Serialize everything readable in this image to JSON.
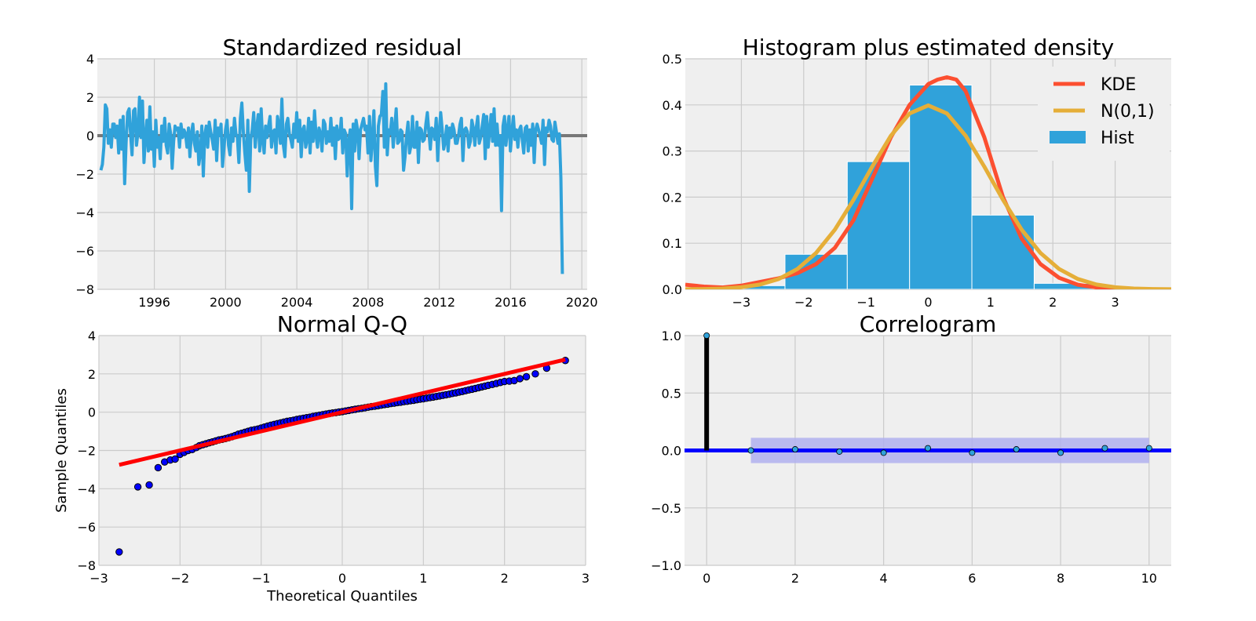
{
  "colors": {
    "residual": "#30a2da",
    "zero_line": "#777777",
    "hist": "#30a2da",
    "kde": "#fc4f30",
    "normal": "#e5ae38",
    "qq_points": "#0000ff",
    "qq_line": "#ff0000",
    "acf_stem": "#000000",
    "acf_zero": "#0000ff",
    "acf_band": "#b0b0ee",
    "acf_points": "#30a2da"
  },
  "chart_data": [
    {
      "type": "line",
      "title": "Standardized residual",
      "xlabel": "",
      "ylabel": "",
      "xlim": [
        1992.8,
        2020.3
      ],
      "ylim": [
        -8,
        4
      ],
      "xticks": [
        1996,
        2000,
        2004,
        2008,
        2012,
        2016,
        2020
      ],
      "yticks": [
        -8,
        -6,
        -4,
        -2,
        0,
        2,
        4
      ],
      "ytick_labels": [
        "−8",
        "−6",
        "−4",
        "−2",
        "0",
        "2",
        "4"
      ],
      "grid": true,
      "reference_line": 0,
      "series": [
        {
          "x_start": 1993.0,
          "x_step": 0.0833,
          "values": [
            -1.8,
            -1.5,
            -0.6,
            1.6,
            1.4,
            -0.4,
            0.3,
            -0.6,
            0.6,
            0.6,
            -0.1,
            0.5,
            -0.9,
            0.8,
            -0.7,
            1.0,
            -2.5,
            -0.3,
            1.2,
            1.4,
            0.1,
            -1.0,
            1.3,
            1.4,
            -0.5,
            0.2,
            2.0,
            -0.1,
            1.8,
            -1.4,
            -0.2,
            0.8,
            -0.8,
            1.5,
            -0.7,
            0.2,
            -1.6,
            0.8,
            -0.6,
            -0.1,
            -1.2,
            0.5,
            -0.3,
            0.9,
            -0.5,
            -0.9,
            0.6,
            0.1,
            -1.7,
            -0.3,
            0.5,
            0.3,
            0.4,
            -0.6,
            0.6,
            -0.1,
            0.3,
            0.1,
            -0.6,
            0.4,
            -1.1,
            0.1,
            0.6,
            -0.4,
            -0.8,
            0.2,
            -1.5,
            -0.9,
            0.5,
            -2.1,
            0.0,
            0.5,
            -0.6,
            0.7,
            0.2,
            -0.2,
            -0.7,
            0.8,
            -1.3,
            0.4,
            0.0,
            0.6,
            -1.6,
            -0.6,
            0.3,
            0.8,
            -0.5,
            -1.0,
            0.4,
            -0.3,
            0.9,
            0.1,
            -0.1,
            -1.4,
            0.9,
            1.7,
            0.2,
            -0.9,
            -1.8,
            0.8,
            -2.9,
            -0.2,
            0.3,
            1.2,
            -0.6,
            0.4,
            1.1,
            -0.8,
            1.4,
            -0.3,
            -0.9,
            0.5,
            -0.1,
            0.5,
            1.0,
            -0.6,
            0.2,
            0.3,
            -0.9,
            1.0,
            0.5,
            -0.4,
            1.9,
            -0.5,
            -1.1,
            0.6,
            0.9,
            0.1,
            -0.2,
            -0.6,
            0.6,
            -0.1,
            1.2,
            -0.3,
            0.8,
            -1.1,
            0.3,
            0.5,
            -0.6,
            -0.2,
            0.9,
            -0.9,
            0.7,
            -0.3,
            1.3,
            0.0,
            -0.6,
            0.4,
            0.1,
            -0.8,
            0.8,
            0.6,
            -0.4,
            0.2,
            -0.3,
            0.9,
            -0.5,
            0.4,
            -1.2,
            0.5,
            -0.2,
            -0.1,
            0.9,
            -0.9,
            0.3,
            0.1,
            -2.1,
            -0.3,
            0.3,
            -3.8,
            0.6,
            -0.8,
            0.8,
            0.3,
            -1.2,
            0.3,
            0.6,
            0.9,
            0.3,
            0.5,
            -0.9,
            1.0,
            -1.3,
            -0.2,
            1.3,
            -1.6,
            -2.6,
            0.5,
            1.0,
            1.1,
            2.3,
            -0.6,
            2.7,
            -1.0,
            0.3,
            0.1,
            0.9,
            -0.6,
            0.4,
            1.4,
            -0.4,
            -0.3,
            0.3,
            0.2,
            -1.8,
            -1.1,
            0.0,
            0.7,
            -0.9,
            -0.5,
            1.0,
            -0.6,
            -0.6,
            0.7,
            -1.4,
            0.4,
            0.3,
            -0.3,
            -0.2,
            0.6,
            1.2,
            0.2,
            -0.7,
            0.4,
            0.3,
            -0.2,
            0.9,
            -1.3,
            0.2,
            1.2,
            0.3,
            -0.7,
            -0.3,
            0.5,
            -0.8,
            0.4,
            -0.1,
            0.6,
            0.3,
            -0.4,
            -0.4,
            0.0,
            0.6,
            0.9,
            -1.3,
            0.3,
            0.4,
            0.2,
            -0.6,
            -0.3,
            0.8,
            0.4,
            -0.5,
            0.4,
            1.0,
            -0.4,
            -0.1,
            0.5,
            1.1,
            -1.2,
            1.0,
            -0.6,
            0.3,
            1.1,
            -0.3,
            1.4,
            -0.5,
            0.6,
            -0.5,
            0.0,
            -3.9,
            0.5,
            1.0,
            -0.5,
            0.3,
            1.0,
            -0.8,
            0.2,
            1.0,
            -0.2,
            0.3,
            -0.6,
            0.3,
            0.5,
            -0.2,
            -0.9,
            0.4,
            0.5,
            -0.8,
            0.3,
            -0.5,
            0.6,
            -1.4,
            0.3,
            0.6,
            0.3,
            0.0,
            -0.4,
            0.8,
            -1.5,
            0.4,
            0.2,
            0.8,
            0.5,
            -0.2,
            -0.3,
            0.7,
            0.2,
            -0.4,
            0.1,
            -2.2,
            -7.2
          ]
        }
      ]
    },
    {
      "type": "bar",
      "title": "Histogram plus estimated density",
      "xlabel": "",
      "ylabel": "",
      "xlim": [
        -3.9,
        3.9
      ],
      "ylim": [
        0,
        0.5
      ],
      "xticks": [
        -3,
        -2,
        -1,
        0,
        1,
        2,
        3
      ],
      "xtick_labels": [
        "−3",
        "−2",
        "−1",
        "0",
        "1",
        "2",
        "3"
      ],
      "yticks": [
        0.0,
        0.1,
        0.2,
        0.3,
        0.4,
        0.5
      ],
      "ytick_labels": [
        "0.0",
        "0.1",
        "0.2",
        "0.3",
        "0.4",
        "0.5"
      ],
      "grid": true,
      "legend": "top-right",
      "bins": [
        {
          "x0": -3.3,
          "x1": -2.3,
          "value": 0.008
        },
        {
          "x0": -2.3,
          "x1": -1.3,
          "value": 0.076
        },
        {
          "x0": -1.3,
          "x1": -0.3,
          "value": 0.277
        },
        {
          "x0": -0.3,
          "x1": 0.7,
          "value": 0.443
        },
        {
          "x0": 0.7,
          "x1": 1.7,
          "value": 0.161
        },
        {
          "x0": 1.7,
          "x1": 2.7,
          "value": 0.013
        }
      ],
      "series": [
        {
          "name": "KDE",
          "type": "line",
          "x": [
            -3.9,
            -3.6,
            -3.3,
            -3.0,
            -2.7,
            -2.4,
            -2.1,
            -1.8,
            -1.5,
            -1.2,
            -0.9,
            -0.6,
            -0.3,
            0.0,
            0.15,
            0.3,
            0.45,
            0.6,
            0.9,
            1.2,
            1.5,
            1.8,
            2.1,
            2.4,
            2.7,
            3.0,
            3.3,
            3.6,
            3.9
          ],
          "values": [
            0.01,
            0.006,
            0.004,
            0.008,
            0.016,
            0.024,
            0.035,
            0.055,
            0.09,
            0.15,
            0.24,
            0.33,
            0.4,
            0.445,
            0.455,
            0.46,
            0.455,
            0.43,
            0.33,
            0.2,
            0.11,
            0.055,
            0.025,
            0.01,
            0.004,
            0.001,
            0.0,
            0.0,
            0.0
          ]
        },
        {
          "name": "N(0,1)",
          "type": "line",
          "x": [
            -3.9,
            -3.6,
            -3.3,
            -3.0,
            -2.7,
            -2.4,
            -2.1,
            -1.8,
            -1.5,
            -1.2,
            -0.9,
            -0.6,
            -0.3,
            0.0,
            0.3,
            0.6,
            0.9,
            1.2,
            1.5,
            1.8,
            2.1,
            2.4,
            2.7,
            3.0,
            3.3,
            3.6,
            3.9
          ],
          "values": [
            0.0002,
            0.0006,
            0.0017,
            0.0044,
            0.0104,
            0.0224,
            0.044,
            0.079,
            0.1295,
            0.1942,
            0.2661,
            0.3332,
            0.3814,
            0.3989,
            0.3814,
            0.3332,
            0.2661,
            0.1942,
            0.1295,
            0.079,
            0.044,
            0.0224,
            0.0104,
            0.0044,
            0.0017,
            0.0006,
            0.0002
          ]
        },
        {
          "name": "Hist",
          "type": "bar"
        }
      ]
    },
    {
      "type": "scatter",
      "title": "Normal Q-Q",
      "xlabel": "Theoretical Quantiles",
      "ylabel": "Sample Quantiles",
      "xlim": [
        -3,
        3
      ],
      "ylim": [
        -8,
        4
      ],
      "xticks": [
        -3,
        -2,
        -1,
        0,
        1,
        2,
        3
      ],
      "xtick_labels": [
        "−3",
        "−2",
        "−1",
        "0",
        "1",
        "2",
        "3"
      ],
      "yticks": [
        -8,
        -6,
        -4,
        -2,
        0,
        2,
        4
      ],
      "ytick_labels": [
        "−8",
        "−6",
        "−4",
        "−2",
        "0",
        "2",
        "4"
      ],
      "grid": true,
      "reference_line": {
        "x": [
          -2.75,
          2.75
        ],
        "y": [
          -2.75,
          2.75
        ]
      },
      "points": {
        "x": [
          -2.75,
          -2.52,
          -2.38,
          -2.27,
          -2.19,
          -2.12,
          -2.06,
          -2.0,
          -1.95,
          -1.9,
          -1.85,
          -1.8,
          -1.76,
          -1.72,
          -1.68,
          -1.64,
          -1.6,
          -1.56,
          -1.52,
          -1.48,
          -1.44,
          -1.4,
          -1.36,
          -1.32,
          -1.28,
          -1.24,
          -1.2,
          -1.16,
          -1.12,
          -1.08,
          -1.04,
          -1.0,
          -0.96,
          -0.92,
          -0.88,
          -0.84,
          -0.8,
          -0.76,
          -0.72,
          -0.68,
          -0.64,
          -0.6,
          -0.56,
          -0.52,
          -0.48,
          -0.44,
          -0.4,
          -0.36,
          -0.32,
          -0.28,
          -0.24,
          -0.2,
          -0.16,
          -0.12,
          -0.08,
          -0.04,
          0.0,
          0.04,
          0.08,
          0.12,
          0.16,
          0.2,
          0.24,
          0.28,
          0.32,
          0.36,
          0.4,
          0.44,
          0.48,
          0.52,
          0.56,
          0.6,
          0.64,
          0.68,
          0.72,
          0.76,
          0.8,
          0.84,
          0.88,
          0.92,
          0.96,
          1.0,
          1.04,
          1.08,
          1.12,
          1.16,
          1.2,
          1.24,
          1.28,
          1.32,
          1.36,
          1.4,
          1.44,
          1.48,
          1.52,
          1.56,
          1.6,
          1.64,
          1.68,
          1.72,
          1.76,
          1.8,
          1.85,
          1.9,
          1.95,
          2.0,
          2.06,
          2.12,
          2.19,
          2.27,
          2.38,
          2.52,
          2.75
        ],
        "y": [
          -7.3,
          -3.9,
          -3.8,
          -2.9,
          -2.6,
          -2.5,
          -2.45,
          -2.2,
          -2.1,
          -2.0,
          -1.95,
          -1.85,
          -1.75,
          -1.7,
          -1.65,
          -1.6,
          -1.55,
          -1.5,
          -1.45,
          -1.42,
          -1.38,
          -1.33,
          -1.28,
          -1.22,
          -1.15,
          -1.1,
          -1.05,
          -1.0,
          -0.95,
          -0.92,
          -0.88,
          -0.83,
          -0.78,
          -0.73,
          -0.68,
          -0.64,
          -0.6,
          -0.56,
          -0.52,
          -0.48,
          -0.45,
          -0.42,
          -0.38,
          -0.35,
          -0.32,
          -0.29,
          -0.26,
          -0.22,
          -0.19,
          -0.16,
          -0.13,
          -0.1,
          -0.07,
          -0.04,
          -0.02,
          0.01,
          0.03,
          0.06,
          0.09,
          0.12,
          0.15,
          0.18,
          0.2,
          0.23,
          0.26,
          0.29,
          0.31,
          0.34,
          0.37,
          0.4,
          0.42,
          0.45,
          0.47,
          0.5,
          0.52,
          0.55,
          0.57,
          0.6,
          0.62,
          0.65,
          0.68,
          0.7,
          0.73,
          0.76,
          0.79,
          0.82,
          0.85,
          0.88,
          0.91,
          0.94,
          0.98,
          1.01,
          1.05,
          1.08,
          1.12,
          1.16,
          1.2,
          1.24,
          1.28,
          1.32,
          1.36,
          1.4,
          1.45,
          1.5,
          1.55,
          1.6,
          1.62,
          1.65,
          1.75,
          1.85,
          2.0,
          2.3,
          2.7
        ]
      }
    },
    {
      "type": "bar",
      "title": "Correlogram",
      "xlabel": "",
      "ylabel": "",
      "xlim": [
        -0.5,
        10.5
      ],
      "ylim": [
        -1.0,
        1.0
      ],
      "xticks": [
        0,
        2,
        4,
        6,
        8,
        10
      ],
      "yticks": [
        -1.0,
        -0.5,
        0.0,
        0.5,
        1.0
      ],
      "ytick_labels": [
        "−1.0",
        "−0.5",
        "0.0",
        "0.5",
        "1.0"
      ],
      "grid": true,
      "confidence_band": {
        "lags": [
          1,
          10
        ],
        "lower": -0.11,
        "upper": 0.11
      },
      "lags": [
        0,
        1,
        2,
        3,
        4,
        5,
        6,
        7,
        8,
        9,
        10
      ],
      "values": [
        1.0,
        0.0,
        0.01,
        -0.01,
        -0.02,
        0.02,
        -0.02,
        0.01,
        -0.02,
        0.02,
        0.02
      ]
    }
  ]
}
